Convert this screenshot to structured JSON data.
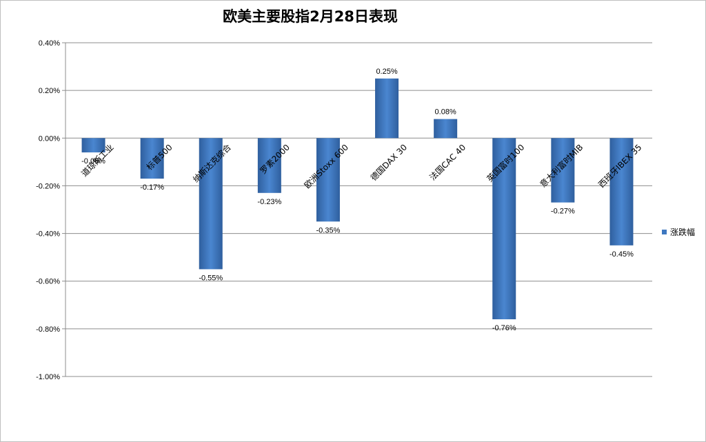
{
  "chart_data": {
    "type": "bar",
    "title": "欧美主要股指2月28日表现",
    "categories": [
      "道琼斯工业",
      "标普500",
      "纳斯达克综合",
      "罗素2000",
      "欧洲Stoxx 600",
      "德国DAX 30",
      "法国CAC 40",
      "英国富时100",
      "意大利富时MIB",
      "西班牙IBEX 35"
    ],
    "series": [
      {
        "name": "涨跌幅",
        "values": [
          -0.06,
          -0.17,
          -0.55,
          -0.23,
          -0.35,
          0.25,
          0.08,
          -0.76,
          -0.27,
          -0.45
        ]
      }
    ],
    "value_labels": [
      "-0.06%",
      "-0.17%",
      "-0.55%",
      "-0.23%",
      "-0.35%",
      "0.25%",
      "0.08%",
      "-0.76%",
      "-0.27%",
      "-0.45%"
    ],
    "y_ticks": [
      "0.40%",
      "0.20%",
      "0.00%",
      "-0.20%",
      "-0.40%",
      "-0.60%",
      "-0.80%",
      "-1.00%"
    ],
    "ylim": [
      -1.0,
      0.4
    ],
    "grid": true,
    "legend_position": "right",
    "bar_color": "#3e78c0"
  }
}
